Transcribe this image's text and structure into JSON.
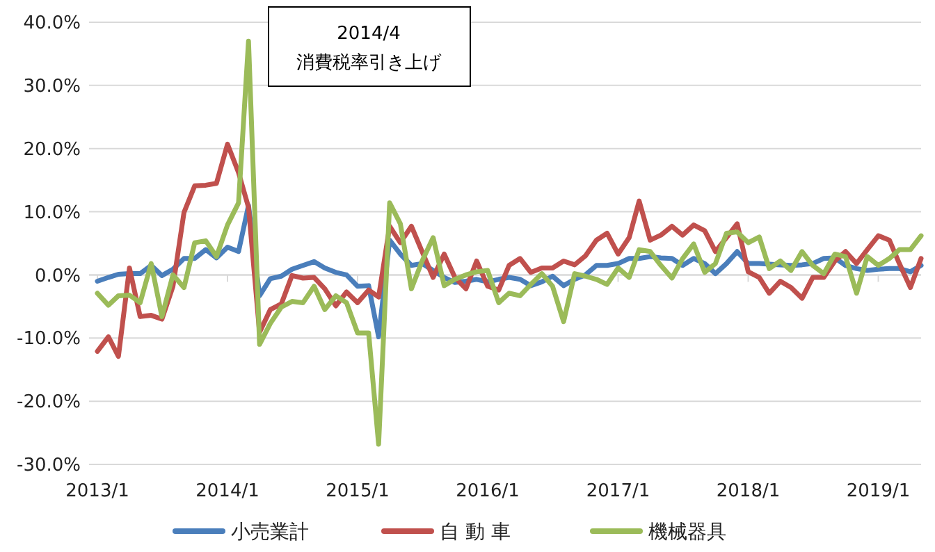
{
  "chart_data": {
    "type": "line",
    "x": [
      "2013-01",
      "2013-02",
      "2013-03",
      "2013-04",
      "2013-05",
      "2013-06",
      "2013-07",
      "2013-08",
      "2013-09",
      "2013-10",
      "2013-11",
      "2013-12",
      "2014-01",
      "2014-02",
      "2014-03",
      "2014-04",
      "2014-05",
      "2014-06",
      "2014-07",
      "2014-08",
      "2014-09",
      "2014-10",
      "2014-11",
      "2014-12",
      "2015-01",
      "2015-02",
      "2015-03",
      "2015-04",
      "2015-05",
      "2015-06",
      "2015-07",
      "2015-08",
      "2015-09",
      "2015-10",
      "2015-11",
      "2015-12",
      "2016-01",
      "2016-02",
      "2016-03",
      "2016-04",
      "2016-05",
      "2016-06",
      "2016-07",
      "2016-08",
      "2016-09",
      "2016-10",
      "2016-11",
      "2016-12",
      "2017-01",
      "2017-02",
      "2017-03",
      "2017-04",
      "2017-05",
      "2017-06",
      "2017-07",
      "2017-08",
      "2017-09",
      "2017-10",
      "2017-11",
      "2017-12",
      "2018-01",
      "2018-02",
      "2018-03",
      "2018-04",
      "2018-05",
      "2018-06",
      "2018-07",
      "2018-08",
      "2018-09",
      "2018-10",
      "2018-11",
      "2018-12",
      "2019-01",
      "2019-02",
      "2019-03",
      "2019-04",
      "2019-05"
    ],
    "series": [
      {
        "name": "小売業計",
        "color": "#4a7ebb",
        "values": [
          -1.0,
          -0.4,
          0.1,
          0.2,
          0.2,
          1.5,
          -0.1,
          0.9,
          2.6,
          2.6,
          4.0,
          2.7,
          4.4,
          3.7,
          11.0,
          -3.3,
          -0.6,
          -0.2,
          0.9,
          1.5,
          2.1,
          1.1,
          0.4,
          0.0,
          -1.8,
          -1.7,
          -9.8,
          5.5,
          3.3,
          1.5,
          1.8,
          0.7,
          -0.4,
          -1.2,
          -1.0,
          -0.7,
          -1.1,
          -0.7,
          -0.4,
          -0.7,
          -1.7,
          -1.1,
          -0.2,
          -1.7,
          -0.7,
          0.0,
          1.5,
          1.5,
          1.8,
          2.6,
          2.6,
          2.9,
          2.7,
          2.6,
          1.5,
          2.6,
          1.8,
          0.2,
          1.8,
          3.7,
          1.8,
          1.8,
          1.7,
          1.6,
          1.5,
          1.6,
          1.8,
          2.6,
          2.7,
          1.5,
          1.0,
          0.7,
          0.9,
          1.0,
          1.0,
          0.5,
          1.5
        ]
      },
      {
        "name": "自 動 車",
        "color": "#c0504d",
        "values": [
          -12.1,
          -9.8,
          -12.9,
          1.1,
          -6.6,
          -6.4,
          -7.0,
          -1.8,
          9.9,
          14.1,
          14.2,
          14.5,
          20.7,
          16.2,
          10.7,
          -9.1,
          -5.5,
          -4.6,
          -0.1,
          -0.5,
          -0.4,
          -2.2,
          -4.9,
          -2.7,
          -4.4,
          -2.4,
          -3.5,
          7.7,
          5.1,
          7.7,
          3.7,
          -0.4,
          3.3,
          -0.4,
          -2.2,
          2.2,
          -1.8,
          -2.4,
          1.5,
          2.6,
          0.4,
          1.1,
          1.1,
          2.2,
          1.6,
          3.0,
          5.5,
          6.6,
          3.3,
          5.9,
          11.7,
          5.5,
          6.3,
          7.7,
          6.3,
          7.9,
          7.0,
          3.7,
          5.9,
          8.1,
          0.5,
          -0.4,
          -2.9,
          -1.0,
          -2.0,
          -3.7,
          -0.4,
          -0.4,
          2.2,
          3.7,
          1.8,
          4.0,
          6.2,
          5.5,
          1.8,
          -2.0,
          2.6
        ]
      },
      {
        "name": "機械器具",
        "color": "#9bbb59",
        "values": [
          -2.9,
          -4.8,
          -3.3,
          -3.2,
          -4.4,
          1.8,
          -6.6,
          0.0,
          -2.0,
          5.1,
          5.4,
          2.9,
          7.9,
          11.4,
          37.0,
          -11.0,
          -7.7,
          -5.1,
          -4.2,
          -4.4,
          -1.8,
          -5.5,
          -3.3,
          -4.4,
          -9.2,
          -9.2,
          -26.8,
          11.4,
          8.1,
          -2.2,
          2.2,
          5.9,
          -1.7,
          -0.7,
          0.0,
          0.5,
          0.7,
          -4.4,
          -2.9,
          -3.3,
          -1.5,
          0.2,
          -1.8,
          -7.4,
          0.2,
          -0.2,
          -0.7,
          -1.5,
          1.1,
          -0.4,
          4.0,
          3.7,
          1.5,
          -0.5,
          2.6,
          4.9,
          0.4,
          1.8,
          6.6,
          6.8,
          5.1,
          6.0,
          1.0,
          2.2,
          0.7,
          3.7,
          1.5,
          0.2,
          3.3,
          2.9,
          -2.9,
          2.9,
          1.5,
          2.6,
          4.0,
          4.0,
          6.2
        ]
      }
    ],
    "xlim": [
      "2013-01",
      "2019-05"
    ],
    "xticks": [
      {
        "value": "2013-01",
        "label": "2013/1"
      },
      {
        "value": "2014-01",
        "label": "2014/1"
      },
      {
        "value": "2015-01",
        "label": "2015/1"
      },
      {
        "value": "2016-01",
        "label": "2016/1"
      },
      {
        "value": "2017-01",
        "label": "2017/1"
      },
      {
        "value": "2018-01",
        "label": "2018/1"
      },
      {
        "value": "2019-01",
        "label": "2019/1"
      }
    ],
    "ylim": [
      -30,
      40
    ],
    "yticks": [
      {
        "value": -30,
        "label": "-30.0%"
      },
      {
        "value": -20,
        "label": "-20.0%"
      },
      {
        "value": -10,
        "label": "-10.0%"
      },
      {
        "value": 0,
        "label": "0.0%"
      },
      {
        "value": 10,
        "label": "10.0%"
      },
      {
        "value": 20,
        "label": "20.0%"
      },
      {
        "value": 30,
        "label": "30.0%"
      },
      {
        "value": 40,
        "label": "40.0%"
      }
    ],
    "grid": "y",
    "legend": "bottom",
    "marker": "none",
    "line_style": "solid",
    "annotations": [
      "2014/4\n消費税率引き上げ"
    ]
  }
}
